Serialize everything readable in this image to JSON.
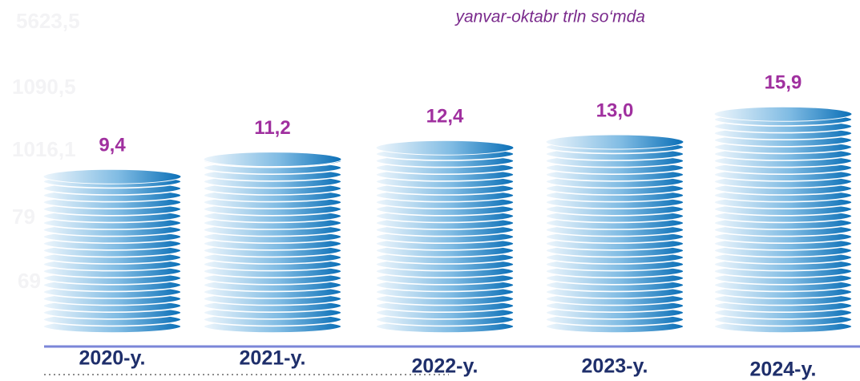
{
  "chart_data": {
    "type": "bar",
    "subtitle": "yanvar-oktabr trln so‘mda",
    "categories": [
      "2020-y.",
      "2021-y.",
      "2022-y.",
      "2023-y.",
      "2024-y."
    ],
    "values": [
      9.4,
      11.2,
      12.4,
      13.0,
      15.9
    ],
    "value_labels": [
      "9,4",
      "11,2",
      "12,4",
      "13,0",
      "15,9"
    ],
    "color": "#0a6fb7",
    "watermark_texts": [
      "5623,5",
      "1090,5",
      "1016,1",
      "79",
      "69"
    ]
  }
}
